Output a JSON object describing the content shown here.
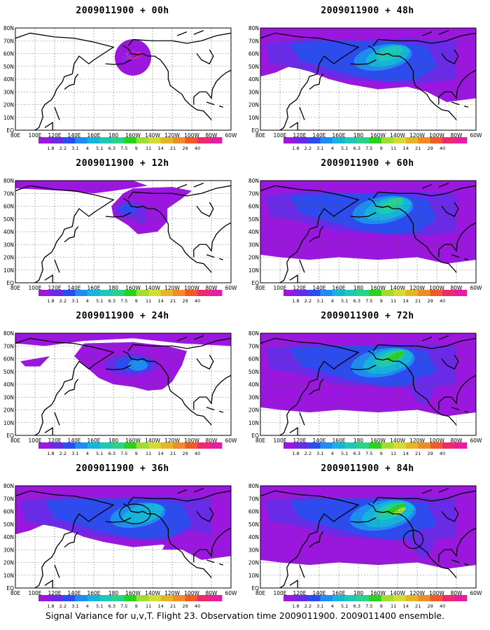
{
  "caption": "Signal Variance for u,v,T. Flight 23. Observation time 2009011900. 2009011400 ensemble.",
  "colors": {
    "c1": "#9b17e0",
    "c2": "#6a2be8",
    "c3": "#2d4cf0",
    "c4": "#1e8cf0",
    "c5": "#14b4dc",
    "c6": "#1ec8b4",
    "c7": "#2ad28c",
    "c8": "#2ad21e",
    "c9": "#a0dc32",
    "c10": "#d2dc32",
    "c11": "#e6b428",
    "c12": "#f08c28",
    "c13": "#f05a28",
    "c14": "#f0286e",
    "c15": "#e61ea0"
  },
  "colorbar_labels": [
    "1.8",
    "2.2",
    "3.1",
    "4",
    "5.1",
    "6.3",
    "7.5",
    "9",
    "11",
    "14",
    "21",
    "29",
    "40"
  ],
  "lat_labels": [
    "80N",
    "70N",
    "60N",
    "50N",
    "40N",
    "30N",
    "20N",
    "10N",
    "EQ"
  ],
  "lon_labels": [
    "80E",
    "100E",
    "120E",
    "140E",
    "160E",
    "180",
    "160W",
    "140W",
    "120W",
    "100W",
    "80W",
    "60W"
  ],
  "panels": [
    {
      "id": "p00",
      "title": "2009011900 + 00h",
      "stage": 0,
      "circle": null
    },
    {
      "id": "p12",
      "title": "2009011900 + 12h",
      "stage": 1,
      "circle": null
    },
    {
      "id": "p24",
      "title": "2009011900 + 24h",
      "stage": 2,
      "circle": null
    },
    {
      "id": "p36",
      "title": "2009011900 + 36h",
      "stage": 3,
      "circle": "north-pacific"
    },
    {
      "id": "p48",
      "title": "2009011900 + 48h",
      "stage": 4,
      "circle": null
    },
    {
      "id": "p60",
      "title": "2009011900 + 60h",
      "stage": 5,
      "circle": null
    },
    {
      "id": "p72",
      "title": "2009011900 + 72h",
      "stage": 6,
      "circle": null
    },
    {
      "id": "p84",
      "title": "2009011900 + 84h",
      "stage": 7,
      "circle": "us-west-coast"
    }
  ]
}
